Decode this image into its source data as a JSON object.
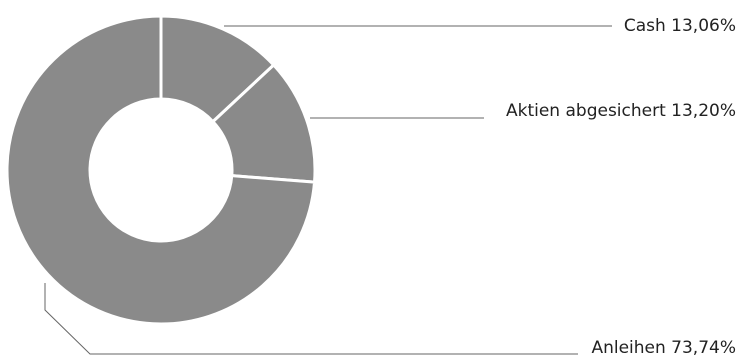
{
  "chart_data": {
    "type": "pie",
    "donut": true,
    "slices": [
      {
        "label": "Cash",
        "value_text": "13,06%",
        "value": 13.06,
        "color": "#8a8a8a"
      },
      {
        "label": "Aktien abgesichert",
        "value_text": "13,20%",
        "value": 13.2,
        "color": "#8a8a8a"
      },
      {
        "label": "Anleihen",
        "value_text": "73,74%",
        "value": 73.74,
        "color": "#8a8a8a"
      }
    ],
    "start_angle": "12 o'clock",
    "direction": "clockwise",
    "legend": "none",
    "separator_color": "#ffffff",
    "leader_line_color": "#666666"
  }
}
